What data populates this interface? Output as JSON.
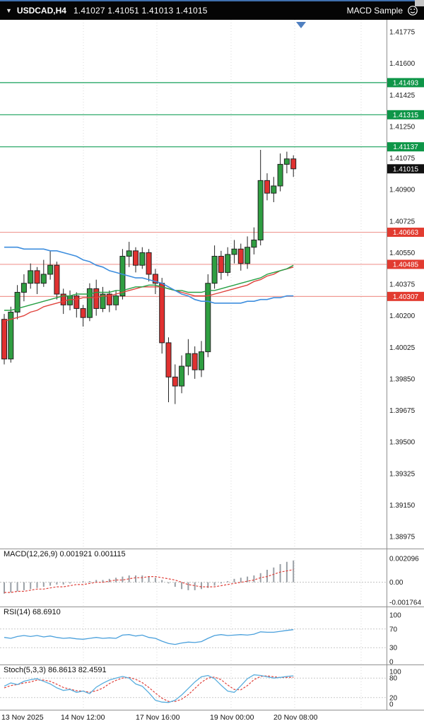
{
  "topbar": {
    "dropdown_icon": "▼",
    "symbol_period": "USDCAD,H4",
    "quotes": "1.41027 1.41051 1.41013 1.41015",
    "ea_label": "MACD Sample",
    "ea_icon": "smiley-face-icon"
  },
  "colors": {
    "bull": "#2f9e41",
    "bear": "#e03130",
    "candle_stroke": "#222222",
    "resistance_line": "#17a05a",
    "resistance_badge": "#0e9648",
    "support_line": "#f09a93",
    "support_badge": "#e23b30",
    "current_badge": "#111111",
    "ma_blue": "#3e8ede",
    "ma_green": "#27a045",
    "ma_red": "#e0433d",
    "macd_hist": "#9aa0a6",
    "macd_signal": "#e0433d",
    "rsi_line": "#4aa0dc",
    "stoch_main": "#58aede",
    "stoch_signal": "#e0433d",
    "grid": "#d8d8d8",
    "separator": "#909090",
    "axis_text": "#1a1a1a"
  },
  "chart_data": {
    "type": "candlestick",
    "symbol": "USDCAD",
    "period": "H4",
    "current_quote": {
      "open": "1.41027",
      "high": "1.41051",
      "low": "1.41013",
      "close": "1.41015"
    },
    "price_axis": {
      "ticks": [
        "1.41775",
        "1.41600",
        "1.41425",
        "1.41250",
        "1.41075",
        "1.40900",
        "1.40725",
        "1.40550",
        "1.40375",
        "1.40200",
        "1.40025",
        "1.39850",
        "1.39675",
        "1.39500",
        "1.39325",
        "1.39150",
        "1.38975"
      ],
      "max": 1.41775,
      "min": 1.38975
    },
    "time_axis": {
      "labels": [
        "13 Nov 2025",
        "14 Nov 12:00",
        "17 Nov 16:00",
        "19 Nov 00:00",
        "20 Nov 08:00"
      ]
    },
    "levels": {
      "resistance": [
        {
          "label": "1.41493",
          "value": 1.41493
        },
        {
          "label": "1.41315",
          "value": 1.41315
        },
        {
          "label": "1.41137",
          "value": 1.41137
        }
      ],
      "support": [
        {
          "label": "1.40663",
          "value": 1.40663
        },
        {
          "label": "1.40485",
          "value": 1.40485
        },
        {
          "label": "1.40307",
          "value": 1.40307
        }
      ],
      "current": {
        "label": "1.41015",
        "value": 1.41015
      }
    },
    "candles": [
      [
        1.4018,
        1.4021,
        1.3993,
        1.3996
      ],
      [
        1.3996,
        1.4025,
        1.3994,
        1.4022
      ],
      [
        1.4022,
        1.4037,
        1.4018,
        1.4033
      ],
      [
        1.4033,
        1.4043,
        1.4028,
        1.4038
      ],
      [
        1.4038,
        1.4049,
        1.4035,
        1.4045
      ],
      [
        1.4045,
        1.4047,
        1.4032,
        1.4038
      ],
      [
        1.4038,
        1.4051,
        1.4036,
        1.4043
      ],
      [
        1.4043,
        1.4056,
        1.404,
        1.4048
      ],
      [
        1.4048,
        1.405,
        1.4029,
        1.4032
      ],
      [
        1.4032,
        1.4035,
        1.4021,
        1.4026
      ],
      [
        1.4026,
        1.4034,
        1.4023,
        1.4031
      ],
      [
        1.4031,
        1.4033,
        1.4019,
        1.4024
      ],
      [
        1.4024,
        1.4026,
        1.4014,
        1.4019
      ],
      [
        1.4019,
        1.4038,
        1.4017,
        1.4035
      ],
      [
        1.4035,
        1.404,
        1.402,
        1.4024
      ],
      [
        1.4024,
        1.4036,
        1.4022,
        1.4032
      ],
      [
        1.4032,
        1.4034,
        1.4022,
        1.4026
      ],
      [
        1.4026,
        1.4034,
        1.4023,
        1.4031
      ],
      [
        1.4031,
        1.4057,
        1.4029,
        1.4053
      ],
      [
        1.4053,
        1.4061,
        1.4047,
        1.4056
      ],
      [
        1.4056,
        1.4058,
        1.4044,
        1.4048
      ],
      [
        1.4048,
        1.4058,
        1.4046,
        1.4055
      ],
      [
        1.4055,
        1.4057,
        1.4039,
        1.4043
      ],
      [
        1.4043,
        1.4046,
        1.4032,
        1.4038
      ],
      [
        1.4038,
        1.4041,
        1.3999,
        1.4005
      ],
      [
        1.4005,
        1.4008,
        1.3972,
        1.3986
      ],
      [
        1.3986,
        1.3993,
        1.3971,
        1.3981
      ],
      [
        1.3981,
        1.3998,
        1.3977,
        1.3992
      ],
      [
        1.3992,
        1.4007,
        1.3987,
        1.3999
      ],
      [
        1.3999,
        1.4003,
        1.3985,
        1.399
      ],
      [
        1.399,
        1.4006,
        1.3986,
        1.4
      ],
      [
        1.4,
        1.4043,
        1.3997,
        1.4038
      ],
      [
        1.4038,
        1.4059,
        1.4035,
        1.4053
      ],
      [
        1.4053,
        1.4056,
        1.404,
        1.4044
      ],
      [
        1.4044,
        1.4058,
        1.4042,
        1.4054
      ],
      [
        1.4054,
        1.4062,
        1.4049,
        1.4057
      ],
      [
        1.4057,
        1.406,
        1.4045,
        1.4049
      ],
      [
        1.4049,
        1.4064,
        1.4046,
        1.4058
      ],
      [
        1.4058,
        1.4069,
        1.4054,
        1.4062
      ],
      [
        1.4062,
        1.4112,
        1.4059,
        1.4095
      ],
      [
        1.4095,
        1.4099,
        1.4084,
        1.4088
      ],
      [
        1.4088,
        1.4097,
        1.4083,
        1.4092
      ],
      [
        1.4092,
        1.411,
        1.4089,
        1.4104
      ],
      [
        1.4104,
        1.4111,
        1.4099,
        1.4107
      ],
      [
        1.4107,
        1.4109,
        1.4097,
        1.41015
      ]
    ],
    "overlays": {
      "ma_blue": [
        1.4058,
        1.4058,
        1.4058,
        1.4057,
        1.4057,
        1.4057,
        1.4057,
        1.4056,
        1.4056,
        1.4055,
        1.4054,
        1.4053,
        1.4051,
        1.405,
        1.4048,
        1.4047,
        1.4045,
        1.4044,
        1.4043,
        1.4042,
        1.4041,
        1.4041,
        1.404,
        1.4039,
        1.4038,
        1.4036,
        1.4034,
        1.4032,
        1.4031,
        1.4029,
        1.4028,
        1.4028,
        1.4027,
        1.4027,
        1.4027,
        1.4027,
        1.4027,
        1.4028,
        1.4028,
        1.4029,
        1.4029,
        1.403,
        1.403,
        1.4031,
        1.4031
      ],
      "ma_green": [
        1.4023,
        1.4023,
        1.4024,
        1.4025,
        1.4026,
        1.4027,
        1.4028,
        1.4029,
        1.403,
        1.4031,
        1.4031,
        1.4032,
        1.4032,
        1.4032,
        1.4033,
        1.4033,
        1.4033,
        1.4034,
        1.4034,
        1.4035,
        1.4036,
        1.4036,
        1.4037,
        1.4037,
        1.4036,
        1.4035,
        1.4034,
        1.4034,
        1.4033,
        1.4033,
        1.4033,
        1.4034,
        1.4034,
        1.4035,
        1.4036,
        1.4037,
        1.4038,
        1.4039,
        1.404,
        1.4041,
        1.4043,
        1.4044,
        1.4045,
        1.4046,
        1.4048
      ],
      "ma_red": [
        1.4017,
        1.4018,
        1.4019,
        1.402,
        1.4022,
        1.4023,
        1.4025,
        1.4026,
        1.4027,
        1.4028,
        1.4029,
        1.4029,
        1.403,
        1.403,
        1.403,
        1.4031,
        1.4031,
        1.4032,
        1.4033,
        1.4034,
        1.4035,
        1.4036,
        1.4036,
        1.4036,
        1.4036,
        1.4035,
        1.4034,
        1.4033,
        1.4032,
        1.4031,
        1.4031,
        1.4031,
        1.4032,
        1.4033,
        1.4034,
        1.4035,
        1.4036,
        1.4037,
        1.4039,
        1.404,
        1.4042,
        1.4043,
        1.4045,
        1.4046,
        1.4047
      ]
    },
    "indicators": [
      {
        "name": "MACD",
        "label": "MACD(12,26,9) 0.001921 0.001115",
        "values": [
          "0.001921",
          "0.001115"
        ],
        "axis": [
          "0.002096",
          "0.00",
          "-0.001764"
        ],
        "axis_values": [
          0.002096,
          0,
          -0.001764
        ],
        "histogram": [
          -0.001,
          -0.0009,
          -0.0008,
          -0.0007,
          -0.0006,
          -0.0005,
          -0.0004,
          -0.0003,
          -0.0002,
          -0.0002,
          -0.0001,
          0.0,
          0.0001,
          0.0001,
          0.0002,
          0.0002,
          0.0003,
          0.0004,
          0.0005,
          0.0006,
          0.0006,
          0.0006,
          0.0005,
          0.0004,
          0.0002,
          -0.0001,
          -0.0004,
          -0.0006,
          -0.0007,
          -0.0007,
          -0.0006,
          -0.0005,
          -0.0003,
          -0.0001,
          0.0001,
          0.0003,
          0.0004,
          0.0005,
          0.0006,
          0.0008,
          0.0011,
          0.0013,
          0.0016,
          0.0018,
          0.001921
        ],
        "signal": [
          -0.0009,
          -0.0009,
          -0.0008,
          -0.0008,
          -0.0007,
          -0.0006,
          -0.0006,
          -0.0005,
          -0.0004,
          -0.0004,
          -0.0003,
          -0.0002,
          -0.0002,
          -0.0001,
          0.0,
          0.0,
          0.0001,
          0.0002,
          0.0002,
          0.0003,
          0.0004,
          0.0004,
          0.0005,
          0.0005,
          0.0004,
          0.0003,
          0.0002,
          0.0,
          -0.0002,
          -0.0003,
          -0.0004,
          -0.0004,
          -0.0004,
          -0.0003,
          -0.0002,
          -0.0001,
          0.0,
          0.0001,
          0.0002,
          0.0004,
          0.0005,
          0.0007,
          0.0009,
          0.001,
          0.001115
        ]
      },
      {
        "name": "RSI",
        "label": "RSI(14) 68.6910",
        "values": [
          "68.6910"
        ],
        "axis": [
          "100",
          "70",
          "30",
          "0"
        ],
        "axis_values": [
          100,
          70,
          30,
          0
        ],
        "level_lines": [
          70,
          30
        ],
        "line": [
          52,
          50,
          54,
          56,
          54,
          56,
          53,
          55,
          52,
          50,
          51,
          49,
          48,
          50,
          52,
          50,
          51,
          50,
          57,
          58,
          55,
          57,
          52,
          50,
          44,
          39,
          37,
          40,
          42,
          41,
          43,
          50,
          56,
          58,
          56,
          57,
          58,
          57,
          59,
          64,
          63,
          63,
          65,
          67,
          68.69
        ]
      },
      {
        "name": "Stochastic",
        "label": "Stoch(5,3,3) 86.8613 82.4591",
        "values": [
          "86.8613",
          "82.4591"
        ],
        "axis": [
          "100",
          "80",
          "20",
          "0"
        ],
        "axis_values": [
          100,
          80,
          20,
          0
        ],
        "level_lines": [
          80,
          20
        ],
        "main": [
          55,
          65,
          60,
          70,
          75,
          78,
          70,
          62,
          50,
          42,
          45,
          36,
          40,
          32,
          52,
          64,
          74,
          80,
          85,
          80,
          62,
          55,
          35,
          12,
          6,
          5,
          12,
          28,
          48,
          68,
          84,
          88,
          78,
          58,
          40,
          36,
          56,
          78,
          90,
          88,
          84,
          80,
          82,
          85,
          86.86
        ],
        "signal": [
          50,
          57,
          60,
          65,
          68,
          74,
          74,
          70,
          61,
          51,
          46,
          41,
          40,
          36,
          41,
          49,
          63,
          73,
          80,
          82,
          76,
          66,
          51,
          34,
          18,
          8,
          8,
          15,
          29,
          48,
          67,
          80,
          83,
          75,
          59,
          45,
          44,
          57,
          75,
          85,
          87,
          84,
          82,
          82,
          82.46
        ]
      }
    ]
  }
}
